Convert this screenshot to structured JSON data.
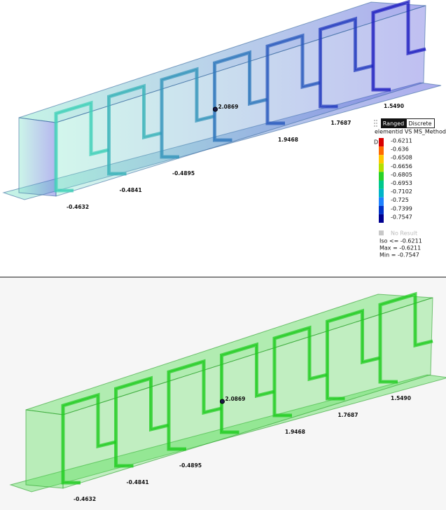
{
  "top_view": {
    "node_labels": [
      "-0.4632",
      "-0.4841",
      "-0.4895",
      "2.0869",
      "1.9468",
      "1.7687",
      "1.5490"
    ]
  },
  "legend": {
    "buttons": [
      "Ranged",
      "Discrete"
    ],
    "title": "elementid VS MS_Method",
    "header": "D",
    "entries": [
      {
        "label": "-0.6211",
        "color": "#d80000"
      },
      {
        "label": "-0.636",
        "color": "#ff6a00"
      },
      {
        "label": "-0.6508",
        "color": "#ffc800"
      },
      {
        "label": "-0.6656",
        "color": "#b4e000"
      },
      {
        "label": "-0.6805",
        "color": "#28d228"
      },
      {
        "label": "-0.6953",
        "color": "#00c88c"
      },
      {
        "label": "-0.7102",
        "color": "#00b4c8"
      },
      {
        "label": "-0.725",
        "color": "#1e82ff"
      },
      {
        "label": "-0.7399",
        "color": "#0032c8"
      },
      {
        "label": "-0.7547",
        "color": "#000090"
      }
    ],
    "no_result": "No Result",
    "iso": "Iso <= -0.6211",
    "max": "Max =  -0.6211",
    "min": "Min =  -0.7547"
  },
  "bottom_view": {
    "node_labels": [
      "-0.4632",
      "-0.4841",
      "-0.4895",
      "2.0869",
      "1.9468",
      "1.7687",
      "1.5490"
    ]
  }
}
